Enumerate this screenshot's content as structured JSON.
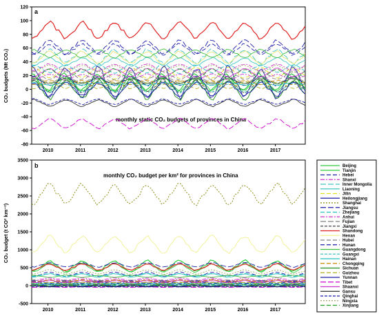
{
  "chart_data": [
    {
      "type": "line",
      "panel_label": "a",
      "title": "monthly static CO₂ budgets of provinces in China",
      "ylabel": "CO₂ budgets (Mt CO₂)",
      "xlabel": "",
      "x_start": 2009.5,
      "x_end": 2017.92,
      "ylim": [
        -80,
        120
      ],
      "yticks": [
        -80,
        -60,
        -40,
        -20,
        0,
        20,
        40,
        60,
        80,
        100,
        120
      ],
      "xtick_labels": [
        "2010",
        "2011",
        "2012",
        "2013",
        "2014",
        "2015",
        "2016",
        "2017"
      ],
      "grid": false,
      "series": [
        {
          "name": "Beijing",
          "color": "#2ecc40",
          "dash": "",
          "base": 10,
          "amp": 12,
          "peak": 0.5
        },
        {
          "name": "Tianjin",
          "color": "#2ecc40",
          "dash": "",
          "base": 8,
          "amp": 10,
          "peak": 0.55
        },
        {
          "name": "Hebei",
          "color": "#1a1aa6",
          "dash": "6,3",
          "base": 58,
          "amp": 8,
          "peak": 0.05
        },
        {
          "name": "Shanxi",
          "color": "#cc33cc",
          "dash": "6,2,2,2",
          "base": 32,
          "amp": 5,
          "peak": 0.05
        },
        {
          "name": "Inner Mongolia",
          "color": "#40c4c4",
          "dash": "8,3",
          "base": 48,
          "amp": 10,
          "peak": 0.05
        },
        {
          "name": "Liaoning",
          "color": "#40c4c4",
          "dash": "",
          "base": 40,
          "amp": 6,
          "peak": 0.05
        },
        {
          "name": "Jilin",
          "color": "#e0e020",
          "dash": "6,3",
          "base": 24,
          "amp": 8,
          "peak": 0.55
        },
        {
          "name": "Heilongjiang",
          "color": "#1a1aa6",
          "dash": "",
          "base": 10,
          "amp": 22,
          "peak": 0.55
        },
        {
          "name": "Shanghai",
          "color": "#1f6b1f",
          "dash": "",
          "base": 12,
          "amp": 4,
          "peak": 0.55
        },
        {
          "name": "Jiangsu",
          "color": "#1a1aa6",
          "dash": "8,3",
          "base": 62,
          "amp": 10,
          "peak": 0.05
        },
        {
          "name": "Zhejiang",
          "color": "#20c0c0",
          "dash": "6,3",
          "base": 30,
          "amp": 6,
          "peak": 0.55
        },
        {
          "name": "Anhui",
          "color": "#cc33cc",
          "dash": "6,2,2,2",
          "base": 18,
          "amp": 4,
          "peak": 0.05
        },
        {
          "name": "Fujian",
          "color": "#808080",
          "dash": "8,3",
          "base": 14,
          "amp": 5,
          "peak": 0.55
        },
        {
          "name": "Jiangxi",
          "color": "#404040",
          "dash": "4,2",
          "base": 4,
          "amp": 8,
          "peak": 0.55
        },
        {
          "name": "Shandong",
          "color": "#e02020",
          "dash": "",
          "base": 86,
          "amp": 12,
          "peak": 0.05
        },
        {
          "name": "Henan",
          "color": "#e8e870",
          "dash": "",
          "base": 46,
          "amp": 9,
          "peak": 0.05
        },
        {
          "name": "Hubei",
          "color": "#808080",
          "dash": "6,3",
          "base": 20,
          "amp": 6,
          "peak": 0.55
        },
        {
          "name": "Hunan",
          "color": "#1a1aa6",
          "dash": "6,3",
          "base": 12,
          "amp": 7,
          "peak": 0.55
        },
        {
          "name": "Guangdong",
          "color": "#40c040",
          "dash": "",
          "base": 52,
          "amp": 6,
          "peak": 0.55
        },
        {
          "name": "Guangxi",
          "color": "#40c4c4",
          "dash": "4,2",
          "base": 2,
          "amp": 6,
          "peak": 0.55
        },
        {
          "name": "Hainan",
          "color": "#20c0c0",
          "dash": "",
          "base": 8,
          "amp": 2,
          "peak": 0.55
        },
        {
          "name": "Chongqing",
          "color": "#cc8800",
          "dash": "6,3",
          "base": 10,
          "amp": 3,
          "peak": 0.05
        },
        {
          "name": "Sichuan",
          "color": "#1a8a1a",
          "dash": "",
          "base": 0,
          "amp": 14,
          "peak": 0.55
        },
        {
          "name": "Guizhou",
          "color": "#b0b020",
          "dash": "6,3",
          "base": 6,
          "amp": 5,
          "peak": 0.05
        },
        {
          "name": "Yunnan",
          "color": "#1a1aa6",
          "dash": "",
          "base": 0,
          "amp": 10,
          "peak": 0.55
        },
        {
          "name": "Tibet",
          "color": "#cc00cc",
          "dash": "8,3",
          "base": -50,
          "amp": 7,
          "peak": 0.05
        },
        {
          "name": "Shaanxi",
          "color": "#cc33cc",
          "dash": "",
          "base": 24,
          "amp": 6,
          "peak": 0.05
        },
        {
          "name": "Gansu",
          "color": "#2e2e2e",
          "dash": "",
          "base": -20,
          "amp": 5,
          "peak": 0.55
        },
        {
          "name": "Qinghai",
          "color": "#1a1aa6",
          "dash": "4,2",
          "base": -18,
          "amp": 4,
          "peak": 0.55
        },
        {
          "name": "Ningxia",
          "color": "#a0a060",
          "dash": "2,2",
          "base": 30,
          "amp": 5,
          "peak": 0.05
        },
        {
          "name": "Xinjiang",
          "color": "#20a020",
          "dash": "6,3",
          "base": 22,
          "amp": 8,
          "peak": 0.05
        }
      ]
    },
    {
      "type": "line",
      "panel_label": "b",
      "title": "monthly CO₂ budget per km² for provinces in China",
      "ylabel": "CO₂ budget (t CO² km⁻²)",
      "xlabel": "",
      "x_start": 2009.5,
      "x_end": 2017.92,
      "ylim": [
        -500,
        3500
      ],
      "yticks": [
        -500,
        0,
        500,
        1000,
        1500,
        2000,
        2500,
        3000,
        3500
      ],
      "xtick_labels": [
        "2010",
        "2011",
        "2012",
        "2013",
        "2014",
        "2015",
        "2016",
        "2017"
      ],
      "grid": false,
      "series": [
        {
          "name": "Beijing",
          "color": "#2ecc40",
          "dash": "",
          "base": 550,
          "amp": 150,
          "peak": 0.05
        },
        {
          "name": "Tianjin",
          "color": "#2ecc40",
          "dash": "",
          "base": 500,
          "amp": 120,
          "peak": 0.05
        },
        {
          "name": "Hebei",
          "color": "#1a1aa6",
          "dash": "6,3",
          "base": 320,
          "amp": 60,
          "peak": 0.05
        },
        {
          "name": "Shanxi",
          "color": "#cc33cc",
          "dash": "6,2,2,2",
          "base": 180,
          "amp": 40,
          "peak": 0.05
        },
        {
          "name": "Inner Mongolia",
          "color": "#40c4c4",
          "dash": "8,3",
          "base": 40,
          "amp": 15,
          "peak": 0.05
        },
        {
          "name": "Liaoning",
          "color": "#40c4c4",
          "dash": "",
          "base": 280,
          "amp": 50,
          "peak": 0.05
        },
        {
          "name": "Jilin",
          "color": "#e0e020",
          "dash": "6,3",
          "base": 120,
          "amp": 40,
          "peak": 0.05
        },
        {
          "name": "Heilongjiang",
          "color": "#1a1aa6",
          "dash": "",
          "base": 40,
          "amp": 60,
          "peak": 0.55
        },
        {
          "name": "Shanghai",
          "color": "#808000",
          "dash": "2,2",
          "base": 2550,
          "amp": 280,
          "peak": 0.05
        },
        {
          "name": "Jiangsu",
          "color": "#1a1aa6",
          "dash": "8,3",
          "base": 580,
          "amp": 60,
          "peak": 0.05
        },
        {
          "name": "Zhejiang",
          "color": "#20c0c0",
          "dash": "6,3",
          "base": 300,
          "amp": 40,
          "peak": 0.05
        },
        {
          "name": "Anhui",
          "color": "#cc33cc",
          "dash": "6,2,2,2",
          "base": 150,
          "amp": 30,
          "peak": 0.05
        },
        {
          "name": "Fujian",
          "color": "#808080",
          "dash": "8,3",
          "base": 120,
          "amp": 40,
          "peak": 0.55
        },
        {
          "name": "Jiangxi",
          "color": "#404040",
          "dash": "4,2",
          "base": 60,
          "amp": 30,
          "peak": 0.55
        },
        {
          "name": "Shandong",
          "color": "#e02020",
          "dash": "",
          "base": 520,
          "amp": 90,
          "peak": 0.05
        },
        {
          "name": "Henan",
          "color": "#f0f090",
          "dash": "",
          "base": 1150,
          "amp": 230,
          "peak": 0.05
        },
        {
          "name": "Hubei",
          "color": "#808080",
          "dash": "6,3",
          "base": 110,
          "amp": 40,
          "peak": 0.55
        },
        {
          "name": "Hunan",
          "color": "#1a1aa6",
          "dash": "6,3",
          "base": 90,
          "amp": 40,
          "peak": 0.55
        },
        {
          "name": "Guangdong",
          "color": "#40c040",
          "dash": "",
          "base": 260,
          "amp": 30,
          "peak": 0.55
        },
        {
          "name": "Guangxi",
          "color": "#40c4c4",
          "dash": "4,2",
          "base": 30,
          "amp": 30,
          "peak": 0.55
        },
        {
          "name": "Hainan",
          "color": "#20c0c0",
          "dash": "",
          "base": 60,
          "amp": 20,
          "peak": 0.55
        },
        {
          "name": "Chongqing",
          "color": "#cc8800",
          "dash": "6,3",
          "base": 130,
          "amp": 30,
          "peak": 0.05
        },
        {
          "name": "Sichuan",
          "color": "#1a8a1a",
          "dash": "",
          "base": 10,
          "amp": 40,
          "peak": 0.55
        },
        {
          "name": "Guizhou",
          "color": "#b0b020",
          "dash": "6,3",
          "base": 70,
          "amp": 25,
          "peak": 0.05
        },
        {
          "name": "Yunnan",
          "color": "#1a1aa6",
          "dash": "",
          "base": 0,
          "amp": 25,
          "peak": 0.55
        },
        {
          "name": "Tibet",
          "color": "#cc00cc",
          "dash": "8,3",
          "base": -40,
          "amp": 8,
          "peak": 0.05
        },
        {
          "name": "Shaanxi",
          "color": "#cc33cc",
          "dash": "",
          "base": 110,
          "amp": 30,
          "peak": 0.05
        },
        {
          "name": "Gansu",
          "color": "#2e2e2e",
          "dash": "",
          "base": -20,
          "amp": 10,
          "peak": 0.55
        },
        {
          "name": "Qinghai",
          "color": "#1a1aa6",
          "dash": "4,2",
          "base": -30,
          "amp": 6,
          "peak": 0.55
        },
        {
          "name": "Ningxia",
          "color": "#a0a060",
          "dash": "2,2",
          "base": 380,
          "amp": 60,
          "peak": 0.05
        },
        {
          "name": "Xinjiang",
          "color": "#20a020",
          "dash": "6,3",
          "base": 10,
          "amp": 10,
          "peak": 0.05
        }
      ]
    }
  ]
}
